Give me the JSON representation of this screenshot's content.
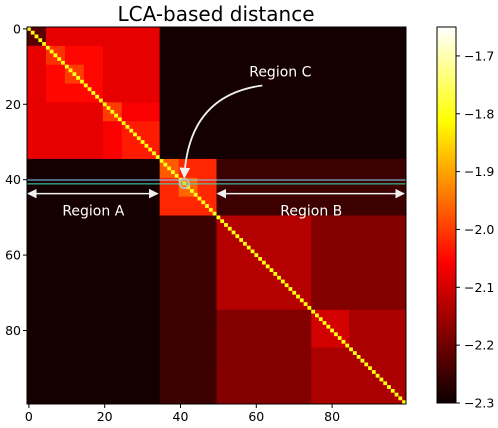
{
  "chart_data": {
    "type": "heatmap",
    "title": "LCA-based distance",
    "n": 100,
    "xlim": [
      0,
      100
    ],
    "ylim": [
      100,
      0
    ],
    "x_ticks": [
      0,
      20,
      40,
      60,
      80
    ],
    "y_ticks": [
      0,
      20,
      40,
      60,
      80
    ],
    "colormap": "hot",
    "value_range": [
      -2.3,
      -1.65
    ],
    "colorbar_ticks": [
      "−1.7",
      "−1.8",
      "−1.9",
      "−2.0",
      "−2.1",
      "−2.2",
      "−2.3"
    ],
    "colorbar_tick_values": [
      -1.7,
      -1.8,
      -1.9,
      -2.0,
      -2.1,
      -2.2,
      -2.3
    ],
    "blocks": [
      {
        "from": 0,
        "to": 35,
        "value": -2.08
      },
      {
        "from": 0,
        "to": 5,
        "value": -2.22
      },
      {
        "from": 5,
        "to": 20,
        "value": -2.05
      },
      {
        "from": 5,
        "to": 10,
        "value": -2.01
      },
      {
        "from": 10,
        "to": 15,
        "value": -2.0
      },
      {
        "from": 20,
        "to": 35,
        "value": -2.06
      },
      {
        "from": 20,
        "to": 25,
        "value": -2.0
      },
      {
        "from": 25,
        "to": 35,
        "value": -2.03
      },
      {
        "from": 35,
        "to": 50,
        "value": -2.02
      },
      {
        "from": 35,
        "to": 40,
        "value": -1.97
      },
      {
        "from": 40,
        "to": 45,
        "value": -1.96
      },
      {
        "from": 50,
        "to": 100,
        "value": -2.18
      },
      {
        "from": 50,
        "to": 75,
        "value": -2.13
      },
      {
        "from": 75,
        "to": 100,
        "value": -2.14
      },
      {
        "from": 75,
        "to": 85,
        "value": -2.1
      }
    ],
    "cross_blocks": [
      {
        "a": [
          0,
          35
        ],
        "b": [
          35,
          100
        ],
        "value": -2.29
      },
      {
        "a": [
          35,
          50
        ],
        "b": [
          50,
          100
        ],
        "value": -2.25
      }
    ],
    "diagonal_value": -1.8,
    "horizontal_lines": [
      {
        "y": 40.6,
        "color": "#80d8ff"
      },
      {
        "y": 41.6,
        "color": "#40e0c0"
      }
    ],
    "regions": [
      {
        "label": "Region A",
        "from": 0,
        "to": 35,
        "arrow_y": 44.2
      },
      {
        "label": "Region B",
        "from": 50,
        "to": 100,
        "arrow_y": 44.2
      }
    ],
    "region_c": {
      "label": "Region C",
      "point": [
        41,
        41
      ]
    }
  }
}
